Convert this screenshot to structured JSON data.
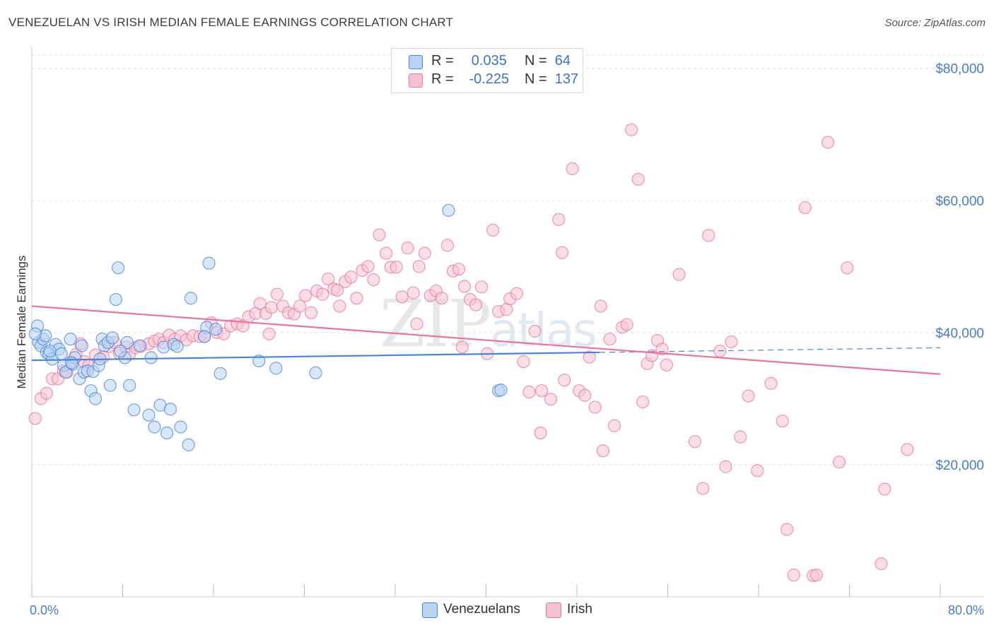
{
  "title": "VENEZUELAN VS IRISH MEDIAN FEMALE EARNINGS CORRELATION CHART",
  "source": "Source: ZipAtlas.com",
  "watermark": "ZIPatlas",
  "colors": {
    "blue": "#4a86d8",
    "blue_fill": "#b8d3f4",
    "pink": "#e8759b",
    "pink_fill": "#f6c2d3",
    "tick": "#4a7cc7",
    "grid": "#dcdcdc"
  },
  "legend_top": {
    "rows": [
      {
        "series": "Venezuelans",
        "r_label": "R =",
        "r_value": "0.035",
        "n_label": "N =",
        "n_value": "64"
      },
      {
        "series": "Irish",
        "r_label": "R =",
        "r_value": "-0.225",
        "n_label": "N =",
        "n_value": "137"
      }
    ]
  },
  "legend_bottom": [
    "Venezuelans",
    "Irish"
  ],
  "chart_data": {
    "type": "scatter",
    "title": "VENEZUELAN VS IRISH MEDIAN FEMALE EARNINGS CORRELATION CHART",
    "xlabel": "",
    "ylabel": "Median Female Earnings",
    "xlim": [
      0,
      80
    ],
    "ylim": [
      0,
      82000
    ],
    "x_tick_labels": [
      "0.0%",
      "80.0%"
    ],
    "y_ticks": [
      20000,
      40000,
      60000,
      80000
    ],
    "y_tick_labels": [
      "$20,000",
      "$40,000",
      "$60,000",
      "$80,000"
    ],
    "grid": "horizontal dashed",
    "legend_position": "top-center and bottom",
    "series": [
      {
        "name": "Venezuelans",
        "color": "#4a86d8",
        "trend": {
          "x": [
            0,
            50
          ],
          "y": [
            35800,
            37000
          ],
          "dashed_extension": {
            "x": [
              50,
              80
            ],
            "y": [
              37000,
              37700
            ]
          }
        },
        "points": [
          [
            0.5,
            41000
          ],
          [
            0.6,
            38500
          ],
          [
            0.8,
            38000
          ],
          [
            1.0,
            39000
          ],
          [
            1.2,
            39500
          ],
          [
            1.3,
            37000
          ],
          [
            1.5,
            36800
          ],
          [
            1.8,
            36000
          ],
          [
            2.1,
            38200
          ],
          [
            2.4,
            37500
          ],
          [
            2.6,
            36800
          ],
          [
            2.8,
            35000
          ],
          [
            3.0,
            34000
          ],
          [
            3.4,
            39000
          ],
          [
            3.6,
            35200
          ],
          [
            3.8,
            36200
          ],
          [
            4.2,
            33000
          ],
          [
            4.4,
            38000
          ],
          [
            4.6,
            34000
          ],
          [
            4.9,
            34200
          ],
          [
            5.2,
            31200
          ],
          [
            5.4,
            34100
          ],
          [
            5.6,
            30000
          ],
          [
            5.9,
            35000
          ],
          [
            6.2,
            39000
          ],
          [
            6.4,
            38000
          ],
          [
            6.7,
            38500
          ],
          [
            6.9,
            32000
          ],
          [
            7.1,
            39200
          ],
          [
            7.4,
            45000
          ],
          [
            7.6,
            49800
          ],
          [
            8.2,
            36200
          ],
          [
            8.4,
            38500
          ],
          [
            8.6,
            32000
          ],
          [
            9.0,
            28300
          ],
          [
            10.3,
            27500
          ],
          [
            10.5,
            36200
          ],
          [
            10.8,
            25700
          ],
          [
            11.3,
            29000
          ],
          [
            11.6,
            37800
          ],
          [
            11.9,
            24800
          ],
          [
            12.2,
            28400
          ],
          [
            12.5,
            38200
          ],
          [
            13.1,
            25700
          ],
          [
            13.8,
            23000
          ],
          [
            14.0,
            45200
          ],
          [
            15.4,
            40800
          ],
          [
            15.6,
            50500
          ],
          [
            16.2,
            40500
          ],
          [
            16.6,
            33800
          ],
          [
            20.0,
            35700
          ],
          [
            21.5,
            34600
          ],
          [
            25.0,
            33900
          ],
          [
            36.7,
            58500
          ],
          [
            41.1,
            31200
          ],
          [
            41.3,
            31300
          ],
          [
            0.3,
            39800
          ],
          [
            1.6,
            37200
          ],
          [
            3.5,
            35400
          ],
          [
            6.0,
            36000
          ],
          [
            7.8,
            37200
          ],
          [
            9.5,
            38000
          ],
          [
            12.8,
            37900
          ],
          [
            15.2,
            39400
          ]
        ]
      },
      {
        "name": "Irish",
        "color": "#e8759b",
        "trend": {
          "x": [
            0,
            80
          ],
          "y": [
            44000,
            33700
          ]
        },
        "points": [
          [
            0.3,
            27000
          ],
          [
            0.8,
            30000
          ],
          [
            1.3,
            30800
          ],
          [
            1.8,
            33000
          ],
          [
            2.3,
            33000
          ],
          [
            2.8,
            34200
          ],
          [
            3.1,
            34000
          ],
          [
            3.5,
            35600
          ],
          [
            3.9,
            36700
          ],
          [
            4.3,
            38300
          ],
          [
            4.6,
            35600
          ],
          [
            5.0,
            35000
          ],
          [
            5.6,
            36600
          ],
          [
            6.3,
            36300
          ],
          [
            6.8,
            37900
          ],
          [
            7.3,
            38500
          ],
          [
            7.7,
            36900
          ],
          [
            8.3,
            37800
          ],
          [
            8.6,
            36700
          ],
          [
            9.1,
            37700
          ],
          [
            9.6,
            37900
          ],
          [
            10.3,
            38300
          ],
          [
            10.8,
            38700
          ],
          [
            11.2,
            39000
          ],
          [
            11.6,
            38500
          ],
          [
            12.1,
            39600
          ],
          [
            12.6,
            39000
          ],
          [
            13.1,
            39500
          ],
          [
            13.6,
            38900
          ],
          [
            14.2,
            39500
          ],
          [
            14.8,
            39400
          ],
          [
            15.2,
            39400
          ],
          [
            15.8,
            41500
          ],
          [
            16.3,
            40000
          ],
          [
            16.9,
            39800
          ],
          [
            17.5,
            41000
          ],
          [
            18.1,
            41300
          ],
          [
            18.6,
            41000
          ],
          [
            19.1,
            42400
          ],
          [
            19.7,
            42900
          ],
          [
            20.1,
            44400
          ],
          [
            20.6,
            42900
          ],
          [
            21.1,
            43800
          ],
          [
            21.6,
            45800
          ],
          [
            22.1,
            44000
          ],
          [
            22.6,
            43000
          ],
          [
            23.1,
            42800
          ],
          [
            23.6,
            44000
          ],
          [
            24.1,
            45600
          ],
          [
            24.6,
            43000
          ],
          [
            25.1,
            46300
          ],
          [
            25.6,
            45800
          ],
          [
            26.1,
            48100
          ],
          [
            26.6,
            46600
          ],
          [
            27.1,
            44000
          ],
          [
            27.6,
            47700
          ],
          [
            28.1,
            48400
          ],
          [
            28.6,
            45200
          ],
          [
            29.1,
            49400
          ],
          [
            29.6,
            50000
          ],
          [
            30.1,
            48000
          ],
          [
            30.6,
            54800
          ],
          [
            31.2,
            52000
          ],
          [
            31.6,
            49900
          ],
          [
            32.1,
            49900
          ],
          [
            32.6,
            45400
          ],
          [
            33.1,
            52800
          ],
          [
            33.6,
            46000
          ],
          [
            34.1,
            50000
          ],
          [
            34.6,
            52000
          ],
          [
            35.1,
            45600
          ],
          [
            35.6,
            46300
          ],
          [
            36.1,
            45200
          ],
          [
            36.6,
            53200
          ],
          [
            37.1,
            49300
          ],
          [
            37.6,
            49600
          ],
          [
            38.1,
            47000
          ],
          [
            38.6,
            45000
          ],
          [
            39.1,
            44200
          ],
          [
            39.6,
            46900
          ],
          [
            40.1,
            36800
          ],
          [
            40.6,
            55500
          ],
          [
            41.1,
            43200
          ],
          [
            41.8,
            43500
          ],
          [
            42.1,
            45100
          ],
          [
            42.7,
            45900
          ],
          [
            43.3,
            35600
          ],
          [
            43.8,
            31000
          ],
          [
            44.3,
            40200
          ],
          [
            44.8,
            24800
          ],
          [
            45.7,
            29900
          ],
          [
            46.4,
            57100
          ],
          [
            46.7,
            52100
          ],
          [
            47.6,
            64800
          ],
          [
            48.2,
            31200
          ],
          [
            48.7,
            30500
          ],
          [
            49.1,
            36300
          ],
          [
            49.6,
            28700
          ],
          [
            50.1,
            44000
          ],
          [
            50.3,
            22100
          ],
          [
            50.9,
            39000
          ],
          [
            51.3,
            25900
          ],
          [
            52.0,
            40800
          ],
          [
            52.4,
            41200
          ],
          [
            52.8,
            70700
          ],
          [
            53.4,
            63200
          ],
          [
            53.8,
            29500
          ],
          [
            54.2,
            35300
          ],
          [
            54.6,
            36500
          ],
          [
            55.1,
            38800
          ],
          [
            55.5,
            37500
          ],
          [
            55.9,
            35100
          ],
          [
            57.0,
            48800
          ],
          [
            58.4,
            23500
          ],
          [
            59.6,
            54700
          ],
          [
            59.1,
            16400
          ],
          [
            60.6,
            37200
          ],
          [
            61.1,
            19700
          ],
          [
            61.6,
            38600
          ],
          [
            62.4,
            24200
          ],
          [
            63.1,
            30400
          ],
          [
            63.9,
            19100
          ],
          [
            65.1,
            32300
          ],
          [
            66.1,
            26600
          ],
          [
            66.5,
            10200
          ],
          [
            67.1,
            3300
          ],
          [
            68.1,
            58900
          ],
          [
            68.8,
            3200
          ],
          [
            69.1,
            3300
          ],
          [
            70.1,
            68800
          ],
          [
            71.1,
            20400
          ],
          [
            71.8,
            49800
          ],
          [
            75.1,
            16300
          ],
          [
            74.8,
            5000
          ],
          [
            77.1,
            22300
          ],
          [
            44.9,
            31200
          ],
          [
            20.9,
            39800
          ],
          [
            26.9,
            46400
          ],
          [
            33.9,
            41300
          ],
          [
            37.9,
            37800
          ],
          [
            46.9,
            32800
          ]
        ]
      }
    ]
  }
}
